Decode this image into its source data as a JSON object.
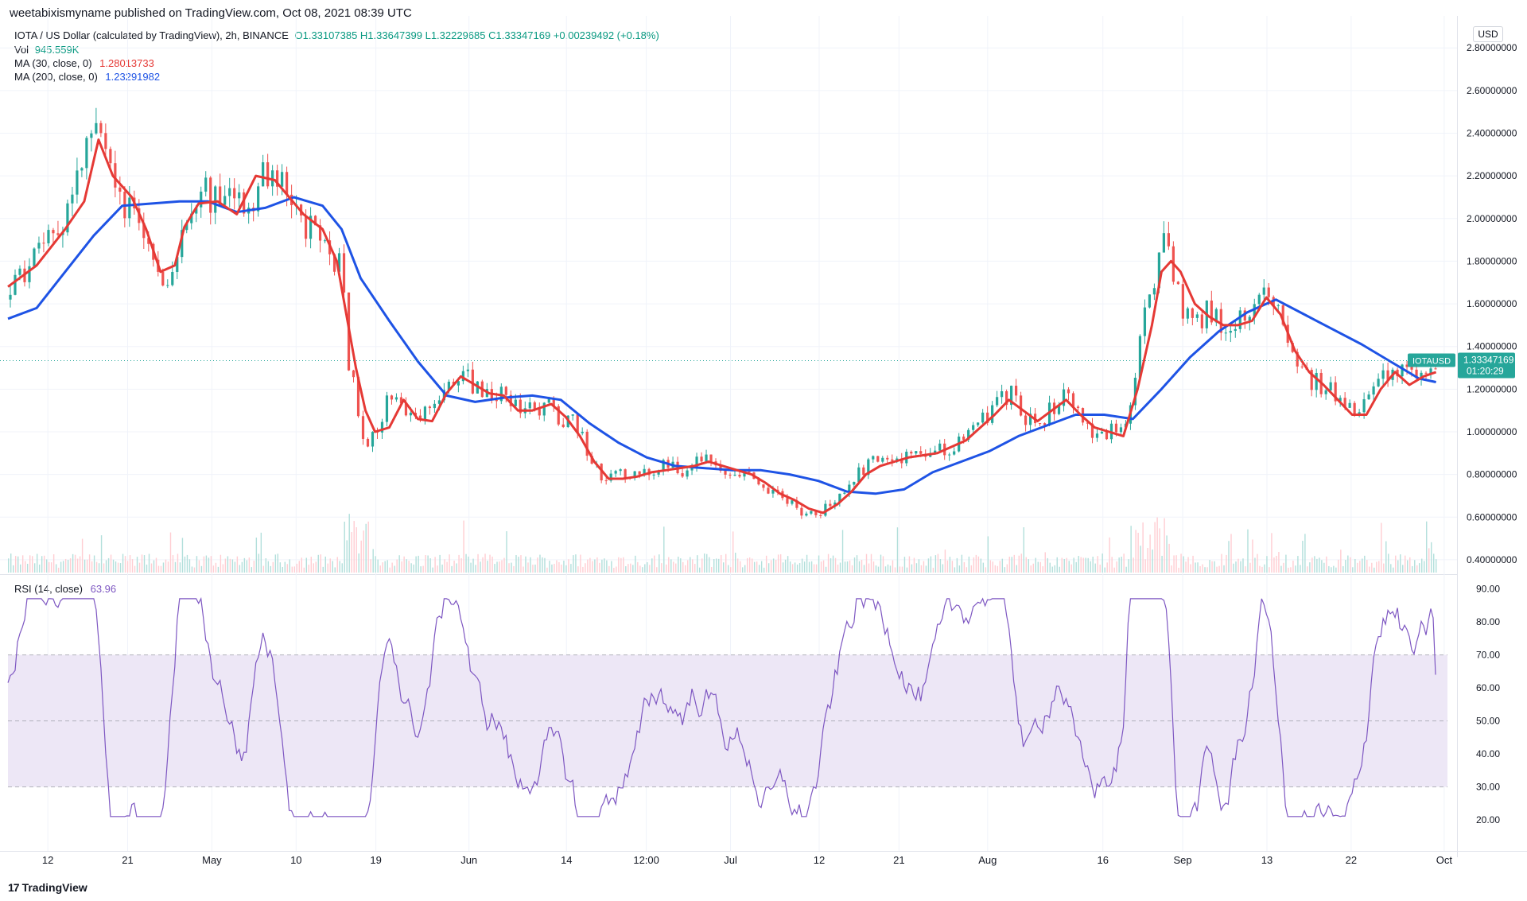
{
  "publisher": "weetabixismyname published on TradingView.com, Oct 08, 2021 08:39 UTC",
  "legend": {
    "title": "IOTA / US Dollar (calculated by TradingView), 2h, BINANCE",
    "ohlc": "O1.33107385 H1.33647399 L1.32229685 C1.33347169 +0.00239492 (+0.18%)",
    "vol_label": "Vol",
    "vol_value": "945.559K",
    "ma30_label": "MA (30, close, 0)",
    "ma30_value": "1.28013733",
    "ma200_label": "MA (200, close, 0)",
    "ma200_value": "1.23291982",
    "rsi_label": "RSI (14, close)",
    "rsi_value": "63.96"
  },
  "currency": "USD",
  "price_tag": {
    "symbol": "IOTAUSD",
    "price": "1.33347169",
    "countdown": "01:20:29"
  },
  "footer": {
    "brand": "TradingView",
    "brand_mark": "17"
  },
  "colors": {
    "up": "#26a69a",
    "down": "#ef5350",
    "ma30": "#e53935",
    "ma200": "#1e53e5",
    "rsi": "#7e57c2",
    "rsi_band": "#ede7f6",
    "price_tag": "#26a69a"
  },
  "chart_data": [
    {
      "type": "candlestick",
      "instrument": "IOTA / US Dollar",
      "interval": "2h",
      "exchange": "BINANCE",
      "x_tick_labels": [
        "12",
        "21",
        "May",
        "10",
        "19",
        "Jun",
        "14",
        "12:00",
        "Jul",
        "12",
        "21",
        "Aug",
        "16",
        "Sep",
        "13",
        "22",
        "Oct"
      ],
      "y_tick_labels": [
        "2.80000000",
        "2.60000000",
        "2.40000000",
        "2.20000000",
        "2.00000000",
        "1.80000000",
        "1.60000000",
        "1.40000000",
        "1.20000000",
        "1.00000000",
        "0.80000000",
        "0.60000000",
        "0.40000000"
      ],
      "y_ticks": [
        2.8,
        2.6,
        2.4,
        2.2,
        2.0,
        1.8,
        1.6,
        1.4,
        1.2,
        1.0,
        0.8,
        0.6,
        0.4
      ],
      "ylim": [
        0.34,
        2.95
      ],
      "close_path": [
        [
          0,
          1.62
        ],
        [
          3,
          1.88
        ],
        [
          6,
          2.0
        ],
        [
          7.5,
          2.25
        ],
        [
          9,
          2.42
        ],
        [
          10.5,
          2.28
        ],
        [
          12,
          2.05
        ],
        [
          14,
          2.0
        ],
        [
          15.5,
          1.75
        ],
        [
          16.5,
          1.7
        ],
        [
          18,
          1.9
        ],
        [
          19.5,
          2.15
        ],
        [
          21.5,
          2.1
        ],
        [
          23.5,
          2.08
        ],
        [
          25,
          2.0
        ],
        [
          26.5,
          2.18
        ],
        [
          28.5,
          2.15
        ],
        [
          30.5,
          2.0
        ],
        [
          32.5,
          1.9
        ],
        [
          34,
          1.85
        ],
        [
          35,
          1.75
        ],
        [
          35.8,
          1.3
        ],
        [
          36.5,
          1.15
        ],
        [
          37.5,
          0.95
        ],
        [
          38.5,
          0.98
        ],
        [
          40,
          1.15
        ],
        [
          41.5,
          1.1
        ],
        [
          43,
          1.05
        ],
        [
          44.5,
          1.12
        ],
        [
          46,
          1.22
        ],
        [
          47.5,
          1.3
        ],
        [
          49,
          1.22
        ],
        [
          50.5,
          1.18
        ],
        [
          52,
          1.2
        ],
        [
          53.5,
          1.1
        ],
        [
          55,
          1.1
        ],
        [
          56.5,
          1.14
        ],
        [
          58,
          1.08
        ],
        [
          60,
          1.0
        ],
        [
          61.5,
          0.82
        ],
        [
          63,
          0.78
        ],
        [
          64.5,
          0.8
        ],
        [
          66,
          0.78
        ],
        [
          67.5,
          0.82
        ],
        [
          69,
          0.84
        ],
        [
          70.5,
          0.82
        ],
        [
          72,
          0.85
        ],
        [
          73.5,
          0.87
        ],
        [
          75,
          0.83
        ],
        [
          76.5,
          0.82
        ],
        [
          78,
          0.8
        ],
        [
          79.5,
          0.74
        ],
        [
          81,
          0.7
        ],
        [
          82.5,
          0.66
        ],
        [
          84,
          0.6
        ],
        [
          85.5,
          0.63
        ],
        [
          87,
          0.68
        ],
        [
          88.5,
          0.75
        ],
        [
          90,
          0.84
        ],
        [
          91.5,
          0.86
        ],
        [
          93,
          0.88
        ],
        [
          94.5,
          0.9
        ],
        [
          96,
          0.88
        ],
        [
          97.5,
          0.92
        ],
        [
          99,
          0.94
        ],
        [
          100.5,
          0.98
        ],
        [
          102,
          1.05
        ],
        [
          103.5,
          1.12
        ],
        [
          105,
          1.2
        ],
        [
          106.5,
          1.07
        ],
        [
          108,
          1.05
        ],
        [
          109.5,
          1.12
        ],
        [
          111,
          1.17
        ],
        [
          112.5,
          1.05
        ],
        [
          114,
          1.0
        ],
        [
          115.5,
          1.0
        ],
        [
          117,
          0.98
        ],
        [
          118,
          1.15
        ],
        [
          119,
          1.55
        ],
        [
          120,
          1.65
        ],
        [
          121,
          1.98
        ],
        [
          122,
          1.85
        ],
        [
          123,
          1.62
        ],
        [
          124.5,
          1.52
        ],
        [
          126,
          1.58
        ],
        [
          127.5,
          1.45
        ],
        [
          129,
          1.5
        ],
        [
          130.5,
          1.55
        ],
        [
          132,
          1.7
        ],
        [
          133.5,
          1.6
        ],
        [
          135,
          1.35
        ],
        [
          136.5,
          1.25
        ],
        [
          138,
          1.22
        ],
        [
          139.5,
          1.15
        ],
        [
          141,
          1.08
        ],
        [
          142.5,
          1.15
        ],
        [
          144,
          1.25
        ],
        [
          145.5,
          1.3
        ],
        [
          147,
          1.28
        ],
        [
          148.5,
          1.28
        ],
        [
          149.8,
          1.3335
        ]
      ],
      "series": [
        {
          "name": "MA (30, close, 0)",
          "last_value": 1.28013733,
          "points": [
            [
              0,
              1.68
            ],
            [
              3,
              1.78
            ],
            [
              6,
              1.95
            ],
            [
              8,
              2.08
            ],
            [
              9.5,
              2.37
            ],
            [
              11,
              2.2
            ],
            [
              13,
              2.1
            ],
            [
              14.5,
              1.95
            ],
            [
              16,
              1.75
            ],
            [
              17.5,
              1.78
            ],
            [
              18.5,
              1.96
            ],
            [
              20,
              2.07
            ],
            [
              22,
              2.08
            ],
            [
              24,
              2.02
            ],
            [
              26,
              2.2
            ],
            [
              28,
              2.18
            ],
            [
              29.5,
              2.1
            ],
            [
              31,
              2.02
            ],
            [
              33,
              1.95
            ],
            [
              34.5,
              1.8
            ],
            [
              35.5,
              1.55
            ],
            [
              36.5,
              1.3
            ],
            [
              37.5,
              1.1
            ],
            [
              38.5,
              1.0
            ],
            [
              40,
              1.02
            ],
            [
              41.5,
              1.15
            ],
            [
              43,
              1.06
            ],
            [
              44.5,
              1.05
            ],
            [
              46,
              1.18
            ],
            [
              47.5,
              1.26
            ],
            [
              49,
              1.22
            ],
            [
              50.5,
              1.18
            ],
            [
              52,
              1.17
            ],
            [
              53.5,
              1.1
            ],
            [
              55,
              1.1
            ],
            [
              57,
              1.13
            ],
            [
              58.5,
              1.07
            ],
            [
              60,
              0.98
            ],
            [
              61.5,
              0.86
            ],
            [
              63,
              0.78
            ],
            [
              64.5,
              0.78
            ],
            [
              66,
              0.79
            ],
            [
              67.5,
              0.81
            ],
            [
              69,
              0.82
            ],
            [
              70.5,
              0.83
            ],
            [
              72,
              0.84
            ],
            [
              73.5,
              0.86
            ],
            [
              75,
              0.84
            ],
            [
              76.5,
              0.82
            ],
            [
              78,
              0.8
            ],
            [
              79.5,
              0.76
            ],
            [
              81,
              0.71
            ],
            [
              82.5,
              0.68
            ],
            [
              84,
              0.64
            ],
            [
              85.5,
              0.62
            ],
            [
              87,
              0.66
            ],
            [
              88.5,
              0.72
            ],
            [
              90,
              0.8
            ],
            [
              91.5,
              0.84
            ],
            [
              93,
              0.86
            ],
            [
              94.5,
              0.88
            ],
            [
              96,
              0.89
            ],
            [
              97.5,
              0.9
            ],
            [
              99,
              0.93
            ],
            [
              100.5,
              0.96
            ],
            [
              102,
              1.02
            ],
            [
              103.5,
              1.08
            ],
            [
              105,
              1.15
            ],
            [
              106.5,
              1.1
            ],
            [
              108,
              1.05
            ],
            [
              109.5,
              1.1
            ],
            [
              111,
              1.15
            ],
            [
              112.5,
              1.08
            ],
            [
              114,
              1.02
            ],
            [
              115.5,
              1.0
            ],
            [
              117,
              0.98
            ],
            [
              118.5,
              1.2
            ],
            [
              120,
              1.5
            ],
            [
              121,
              1.75
            ],
            [
              122,
              1.8
            ],
            [
              123,
              1.75
            ],
            [
              124.5,
              1.6
            ],
            [
              126,
              1.54
            ],
            [
              127.5,
              1.5
            ],
            [
              129,
              1.5
            ],
            [
              130.5,
              1.52
            ],
            [
              132,
              1.63
            ],
            [
              133.5,
              1.55
            ],
            [
              135,
              1.38
            ],
            [
              136.5,
              1.28
            ],
            [
              138,
              1.22
            ],
            [
              139.5,
              1.15
            ],
            [
              141,
              1.08
            ],
            [
              142.5,
              1.08
            ],
            [
              144,
              1.2
            ],
            [
              145.5,
              1.28
            ],
            [
              147,
              1.22
            ],
            [
              148.5,
              1.26
            ],
            [
              149.8,
              1.28
            ]
          ]
        },
        {
          "name": "MA (200, close, 0)",
          "last_value": 1.23291982,
          "points": [
            [
              0,
              1.53
            ],
            [
              3,
              1.58
            ],
            [
              6,
              1.75
            ],
            [
              9,
              1.92
            ],
            [
              12,
              2.06
            ],
            [
              15,
              2.07
            ],
            [
              18,
              2.08
            ],
            [
              21,
              2.08
            ],
            [
              24,
              2.03
            ],
            [
              27,
              2.05
            ],
            [
              30,
              2.1
            ],
            [
              33,
              2.06
            ],
            [
              35,
              1.95
            ],
            [
              37,
              1.72
            ],
            [
              40,
              1.52
            ],
            [
              43,
              1.33
            ],
            [
              46,
              1.17
            ],
            [
              49,
              1.14
            ],
            [
              52,
              1.16
            ],
            [
              55,
              1.17
            ],
            [
              58,
              1.15
            ],
            [
              61,
              1.04
            ],
            [
              64,
              0.95
            ],
            [
              67,
              0.88
            ],
            [
              70,
              0.84
            ],
            [
              73,
              0.83
            ],
            [
              76,
              0.82
            ],
            [
              79,
              0.82
            ],
            [
              82,
              0.8
            ],
            [
              85,
              0.77
            ],
            [
              88,
              0.72
            ],
            [
              91,
              0.71
            ],
            [
              94,
              0.73
            ],
            [
              97,
              0.81
            ],
            [
              100,
              0.86
            ],
            [
              103,
              0.91
            ],
            [
              106,
              0.98
            ],
            [
              109,
              1.03
            ],
            [
              112,
              1.08
            ],
            [
              115,
              1.08
            ],
            [
              118,
              1.06
            ],
            [
              121,
              1.2
            ],
            [
              124,
              1.35
            ],
            [
              127,
              1.47
            ],
            [
              130,
              1.56
            ],
            [
              133,
              1.62
            ],
            [
              136,
              1.55
            ],
            [
              139,
              1.48
            ],
            [
              142,
              1.41
            ],
            [
              145,
              1.33
            ],
            [
              148,
              1.25
            ],
            [
              149.8,
              1.233
            ]
          ]
        }
      ]
    },
    {
      "type": "line",
      "name": "RSI (14, close)",
      "last_value": 63.96,
      "y_tick_labels": [
        "90.00",
        "80.00",
        "70.00",
        "60.00",
        "50.00",
        "40.00",
        "30.00",
        "20.00"
      ],
      "y_ticks": [
        90,
        80,
        70,
        60,
        50,
        40,
        30,
        20
      ],
      "ylim": [
        13,
        93
      ],
      "band": [
        30,
        70
      ],
      "midline": 50
    }
  ]
}
